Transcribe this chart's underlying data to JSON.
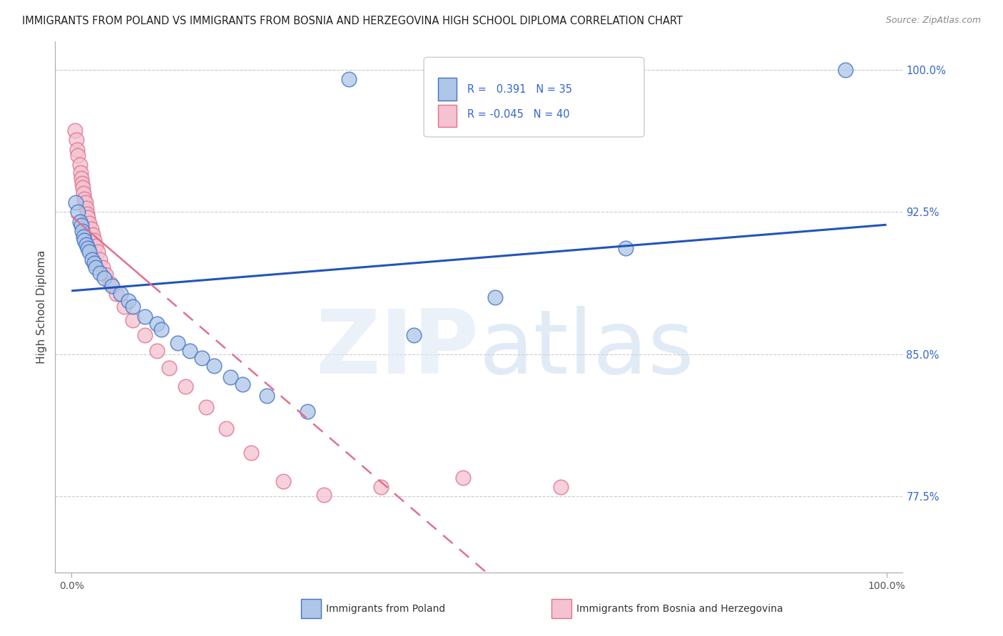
{
  "title": "IMMIGRANTS FROM POLAND VS IMMIGRANTS FROM BOSNIA AND HERZEGOVINA HIGH SCHOOL DIPLOMA CORRELATION CHART",
  "source": "Source: ZipAtlas.com",
  "ylabel": "High School Diploma",
  "r_poland": 0.391,
  "n_poland": 35,
  "r_bosnia": -0.045,
  "n_bosnia": 40,
  "color_poland_face": "#aec6e8",
  "color_poland_edge": "#4472c4",
  "color_bosnia_face": "#f4c2d0",
  "color_bosnia_edge": "#e07090",
  "line_color_poland": "#2255bb",
  "line_color_bosnia": "#e07090",
  "watermark_color": "#d8e4f0",
  "background_color": "#ffffff",
  "grid_color": "#cccccc",
  "ytick_color": "#3366cc",
  "poland_x": [
    0.005,
    0.008,
    0.01,
    0.012,
    0.013,
    0.015,
    0.016,
    0.018,
    0.02,
    0.022,
    0.025,
    0.028,
    0.03,
    0.035,
    0.04,
    0.05,
    0.06,
    0.07,
    0.075,
    0.09,
    0.105,
    0.11,
    0.13,
    0.145,
    0.16,
    0.175,
    0.195,
    0.21,
    0.24,
    0.29,
    0.34,
    0.42,
    0.52,
    0.68,
    0.95
  ],
  "poland_y": [
    0.93,
    0.925,
    0.92,
    0.918,
    0.915,
    0.912,
    0.91,
    0.908,
    0.906,
    0.904,
    0.9,
    0.898,
    0.896,
    0.893,
    0.89,
    0.886,
    0.882,
    0.878,
    0.875,
    0.87,
    0.866,
    0.863,
    0.856,
    0.852,
    0.848,
    0.844,
    0.838,
    0.834,
    0.828,
    0.82,
    0.995,
    0.86,
    0.88,
    0.906,
    1.0
  ],
  "bosnia_x": [
    0.004,
    0.006,
    0.007,
    0.008,
    0.01,
    0.011,
    0.012,
    0.013,
    0.014,
    0.015,
    0.016,
    0.017,
    0.018,
    0.019,
    0.02,
    0.022,
    0.024,
    0.026,
    0.028,
    0.03,
    0.032,
    0.035,
    0.038,
    0.042,
    0.048,
    0.055,
    0.065,
    0.075,
    0.09,
    0.105,
    0.12,
    0.14,
    0.165,
    0.19,
    0.22,
    0.26,
    0.31,
    0.38,
    0.48,
    0.6
  ],
  "bosnia_y": [
    0.968,
    0.963,
    0.958,
    0.955,
    0.95,
    0.946,
    0.943,
    0.94,
    0.938,
    0.935,
    0.932,
    0.93,
    0.927,
    0.924,
    0.922,
    0.919,
    0.916,
    0.913,
    0.91,
    0.907,
    0.904,
    0.9,
    0.896,
    0.892,
    0.887,
    0.882,
    0.875,
    0.868,
    0.86,
    0.852,
    0.843,
    0.833,
    0.822,
    0.811,
    0.798,
    0.783,
    0.776,
    0.78,
    0.785,
    0.78
  ],
  "xlim": [
    -0.02,
    1.02
  ],
  "ylim": [
    0.735,
    1.015
  ],
  "yticks": [
    0.775,
    0.85,
    0.925,
    1.0
  ],
  "ytick_labels": [
    "77.5%",
    "85.0%",
    "92.5%",
    "100.0%"
  ]
}
